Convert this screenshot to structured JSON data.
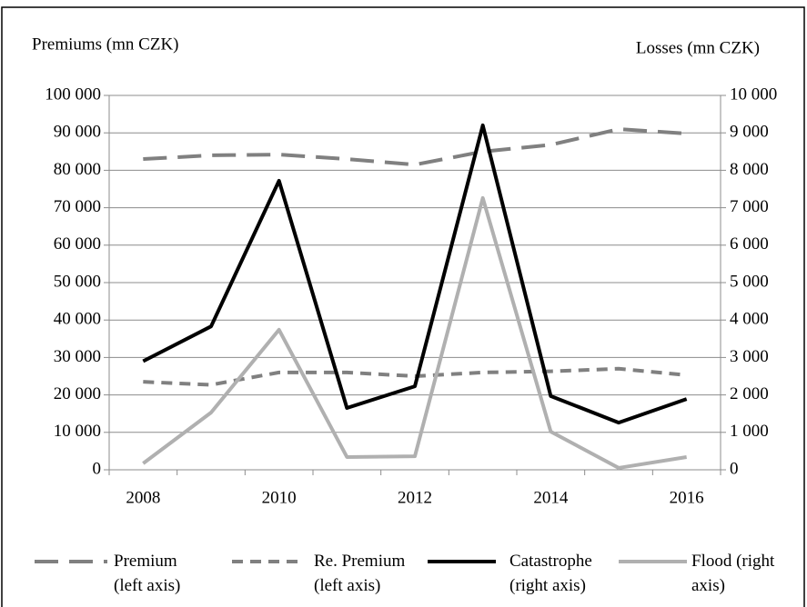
{
  "chart_data": {
    "type": "line",
    "y_label": "Premiums (mn CZK)",
    "y2_label": "Losses (mn CZK)",
    "categories": [
      "2008",
      null,
      "2010",
      null,
      "2012",
      null,
      "2014",
      null,
      "2016"
    ],
    "ylim": [
      0,
      100000
    ],
    "yticks": [
      0,
      {
        "value": 10000,
        "label": "10 000"
      },
      {
        "value": 20000,
        "label": "20 000"
      },
      {
        "value": 30000,
        "label": "30 000"
      },
      {
        "value": 40000,
        "label": "40 000"
      },
      {
        "value": 50000,
        "label": "50 000"
      },
      {
        "value": 60000,
        "label": "60 000"
      },
      {
        "value": 70000,
        "label": "70 000"
      },
      {
        "value": 80000,
        "label": "80 000"
      },
      {
        "value": 90000,
        "label": "90 000"
      },
      {
        "value": 100000,
        "label": "100 000"
      }
    ],
    "y2lim": [
      0,
      10000
    ],
    "y2ticks": [
      0,
      {
        "value": 1000,
        "label": "1 000"
      },
      {
        "value": 2000,
        "label": "2 000"
      },
      {
        "value": 3000,
        "label": "3 000"
      },
      {
        "value": 4000,
        "label": "4 000"
      },
      {
        "value": 5000,
        "label": "5 000"
      },
      {
        "value": 6000,
        "label": "6 000"
      },
      {
        "value": 7000,
        "label": "7 000"
      },
      {
        "value": 8000,
        "label": "8 000"
      },
      {
        "value": 9000,
        "label": "9 000"
      },
      {
        "value": 10000,
        "label": "10 000"
      }
    ],
    "grid": true,
    "legend": "bottom",
    "series": [
      {
        "name": "Premium (left axis)",
        "color": "#808080",
        "dash": "long",
        "values": [
          83000,
          84000,
          84200,
          83000,
          81500,
          85000,
          86800,
          91000,
          89800
        ]
      },
      {
        "name": "Re. Premium (left axis)",
        "color": "#808080",
        "dash": "short",
        "values": [
          23500,
          22700,
          26000,
          26000,
          25000,
          26000,
          26300,
          27000,
          25300
        ]
      },
      {
        "name": "Catastrophe (right axis)",
        "color": "#000000",
        "dash": "solid",
        "axis": "y2",
        "values": [
          2900,
          3830,
          7720,
          1650,
          2230,
          9200,
          1970,
          1260,
          1890
        ]
      },
      {
        "name": "Flood (right axis)",
        "color": "#b0b0b0",
        "dash": "solid",
        "axis": "y2",
        "values": [
          170,
          1530,
          3740,
          340,
          360,
          7260,
          1020,
          50,
          340
        ]
      }
    ]
  }
}
